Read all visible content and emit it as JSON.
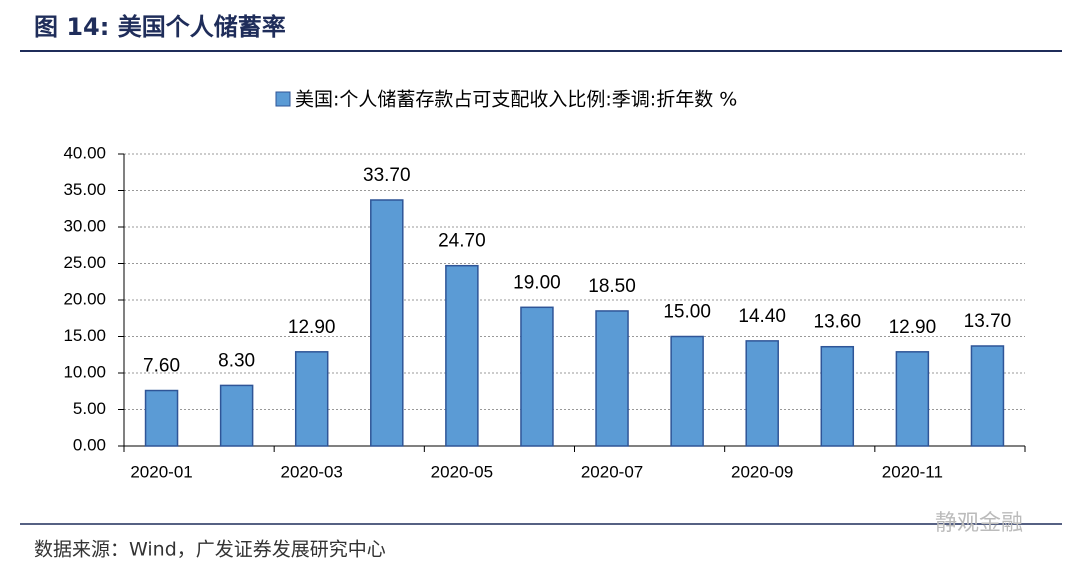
{
  "header": {
    "title": "图 14:  美国个人储蓄率"
  },
  "chart_data": {
    "type": "bar",
    "categories": [
      "2020-01",
      null,
      "2020-03",
      null,
      "2020-05",
      null,
      "2020-07",
      null,
      "2020-09",
      null,
      "2020-11",
      null
    ],
    "series": [
      {
        "name": "美国:个人储蓄存款占可支配收入比例:季调:折年数 %",
        "color": "#5b9bd5",
        "values": [
          7.6,
          8.3,
          12.9,
          33.7,
          24.7,
          19.0,
          18.5,
          15.0,
          14.4,
          13.6,
          12.9,
          13.7
        ],
        "value_labels": [
          "7.60",
          "8.30",
          "12.90",
          "33.70",
          "24.70",
          "19.00",
          "18.50",
          "15.00",
          "14.40",
          "13.60",
          "12.90",
          "13.70"
        ]
      }
    ],
    "ylim": [
      0,
      40
    ],
    "yticks": [
      {
        "value": 0,
        "label": "0.00"
      },
      {
        "value": 5,
        "label": "5.00"
      },
      {
        "value": 10,
        "label": "10.00"
      },
      {
        "value": 15,
        "label": "15.00"
      },
      {
        "value": 20,
        "label": "20.00"
      },
      {
        "value": 25,
        "label": "25.00"
      },
      {
        "value": 30,
        "label": "30.00"
      },
      {
        "value": 35,
        "label": "35.00"
      },
      {
        "value": 40,
        "label": "40.00"
      }
    ],
    "grid": true
  },
  "footer": {
    "source": "数据来源：Wind，广发证券发展研究中心",
    "watermark": "静观金融"
  }
}
